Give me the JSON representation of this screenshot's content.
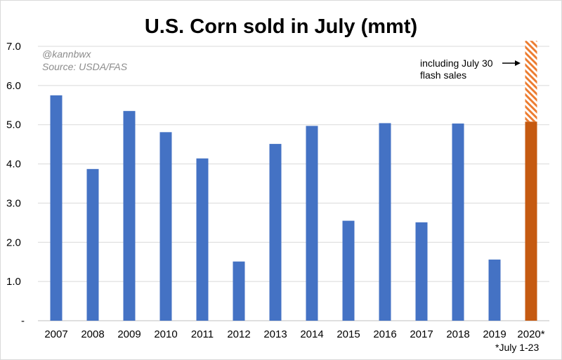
{
  "chart_data": {
    "type": "bar",
    "title": "U.S. Corn sold in July (mmt)",
    "categories": [
      "2007",
      "2008",
      "2009",
      "2010",
      "2011",
      "2012",
      "2013",
      "2014",
      "2015",
      "2016",
      "2017",
      "2018",
      "2019",
      "2020*"
    ],
    "values": [
      5.75,
      3.87,
      5.35,
      4.81,
      4.14,
      1.51,
      4.51,
      4.97,
      2.55,
      5.04,
      2.51,
      5.03,
      1.56,
      5.08
    ],
    "extra": {
      "category": "2020*",
      "value": 2.06,
      "label": "including July 30 flash sales"
    },
    "ylim": [
      0,
      7.0
    ],
    "yticks": [
      "-",
      "1.0",
      "2.0",
      "3.0",
      "4.0",
      "5.0",
      "6.0",
      "7.0"
    ],
    "grid": true,
    "colors": {
      "bar": "#4472c4",
      "highlight": "#c55a11",
      "hatch": "#ed7d31"
    }
  },
  "annotations": {
    "handle": "@kannbwx",
    "source": "Source: USDA/FAS",
    "arrow_note_line1": "including July 30",
    "arrow_note_line2": "flash sales",
    "footnote": "*July 1-23"
  }
}
